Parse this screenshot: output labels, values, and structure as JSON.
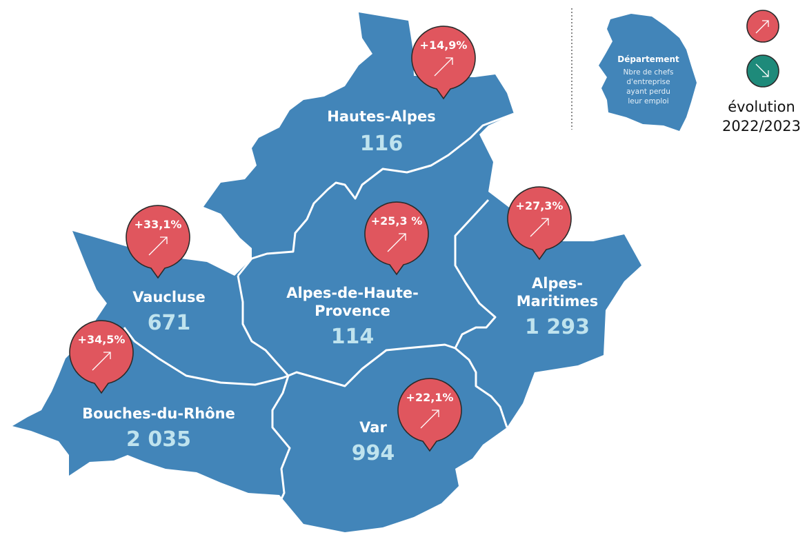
{
  "departments": [
    {
      "id": "hautes-alpes",
      "name_lines": [
        "Hautes-Alpes"
      ],
      "value": "116",
      "evolution": "+14,9%",
      "trend": "up"
    },
    {
      "id": "alpes-de-haute-provence",
      "name_lines": [
        "Alpes-de-Haute-",
        "Provence"
      ],
      "value": "114",
      "evolution": "+25,3 %",
      "trend": "up"
    },
    {
      "id": "alpes-maritimes",
      "name_lines": [
        "Alpes-",
        "Maritimes"
      ],
      "value": "1 293",
      "evolution": "+27,3%",
      "trend": "up"
    },
    {
      "id": "vaucluse",
      "name_lines": [
        "Vaucluse"
      ],
      "value": "671",
      "evolution": "+33,1%",
      "trend": "up"
    },
    {
      "id": "bouches-du-rhone",
      "name_lines": [
        "Bouches-du-Rhône"
      ],
      "value": "2 035",
      "evolution": "+34,5%",
      "trend": "up"
    },
    {
      "id": "var",
      "name_lines": [
        "Var"
      ],
      "value": "994",
      "evolution": "+22,1%",
      "trend": "up"
    }
  ],
  "legend": {
    "title": "Département",
    "description_lines": [
      "Nbre de chefs",
      "d'entreprise",
      "ayant perdu",
      "leur emploi"
    ],
    "evolution_lines": [
      "évolution",
      "2022/2023"
    ],
    "up_color": "#e0565e",
    "down_color": "#1e8a7a",
    "up_icon": "arrow-up-right-icon",
    "down_icon": "arrow-down-right-icon"
  },
  "colors": {
    "region_fill": "#4285b9",
    "value_text": "#bfe3ee",
    "border": "#ffffff"
  }
}
